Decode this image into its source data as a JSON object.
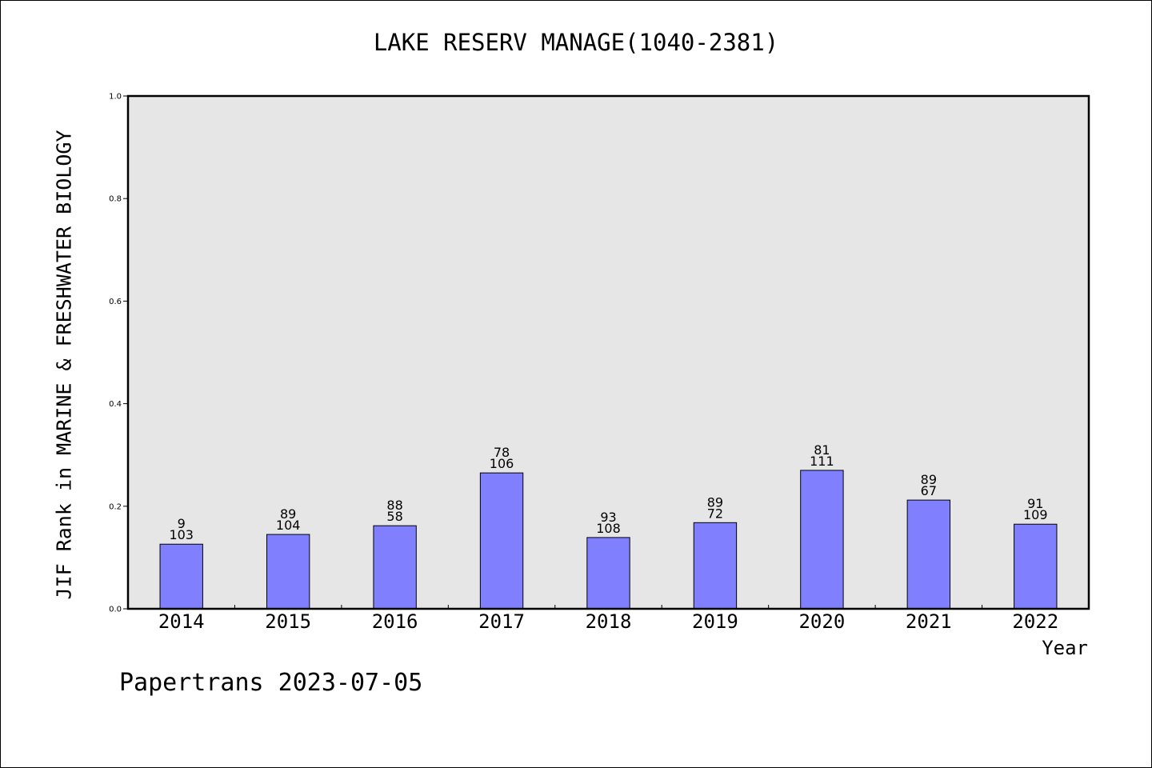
{
  "chart_data": {
    "type": "bar",
    "title": "LAKE RESERV MANAGE(1040-2381)",
    "xlabel": "Year",
    "ylabel": "JIF Rank in MARINE & FRESHWATER BIOLOGY",
    "ylim": [
      0,
      1.0
    ],
    "yticks": [
      "0.0",
      "0.2",
      "0.4",
      "0.6",
      "0.8",
      "1.0"
    ],
    "grid": false,
    "categories": [
      "2014",
      "2015",
      "2016",
      "2017",
      "2018",
      "2019",
      "2020",
      "2021",
      "2022"
    ],
    "values": [
      0.126,
      0.145,
      0.162,
      0.265,
      0.139,
      0.168,
      0.27,
      0.212,
      0.165
    ],
    "labels_top": [
      "9",
      "89",
      "88",
      "78",
      "93",
      "89",
      "81",
      "89",
      "91"
    ],
    "labels_bottom": [
      "103",
      "104",
      "58",
      "106",
      "108",
      "72",
      "111",
      "67",
      "109"
    ],
    "bar_color": "#8080ff",
    "plot_background": "#e6e6e6"
  },
  "footer": "Papertrans 2023-07-05"
}
